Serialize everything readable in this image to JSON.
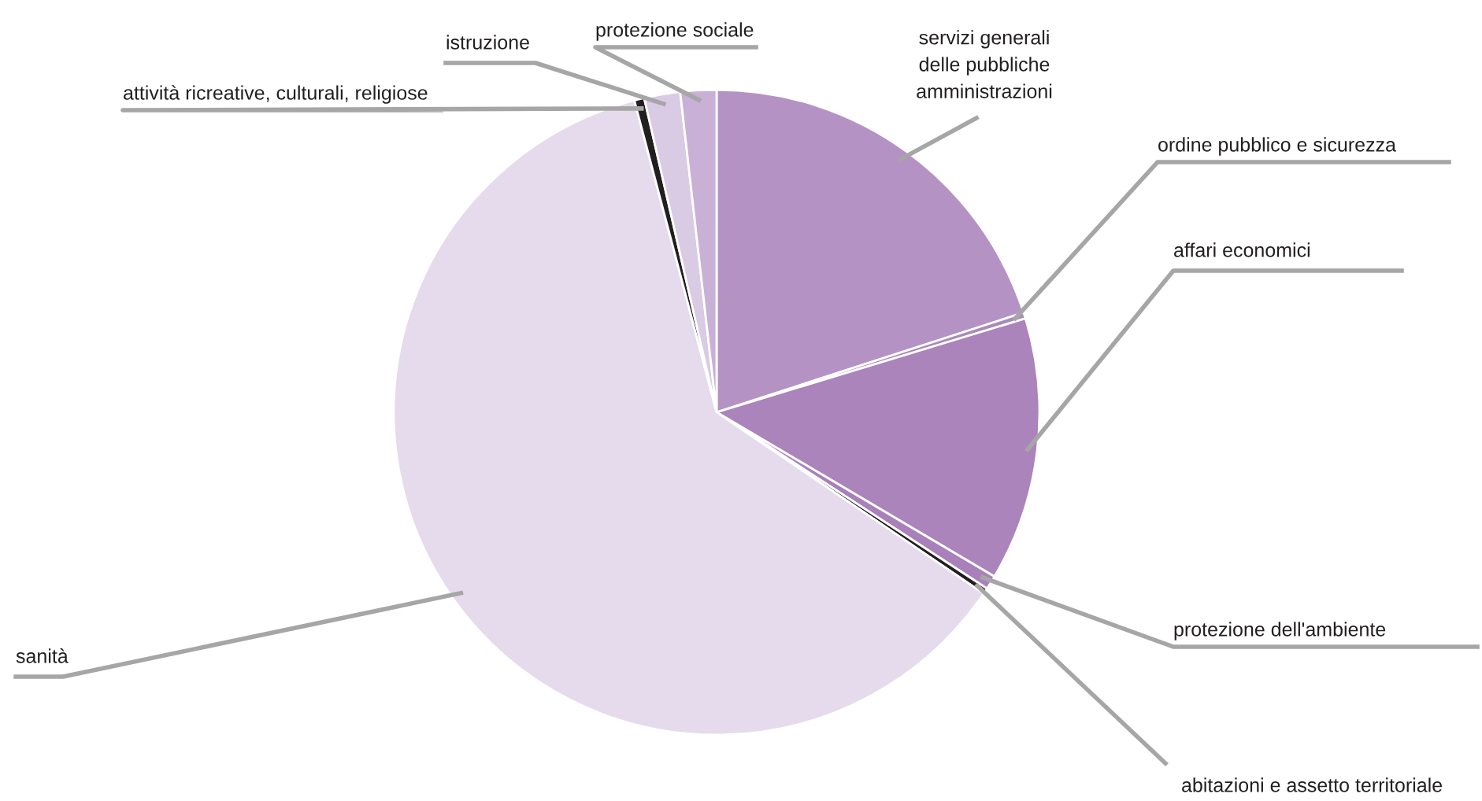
{
  "chart_data": {
    "type": "pie",
    "categories": [
      "servizi generali\ndelle pubbliche\namministrazioni",
      "ordine pubblico e sicurezza",
      "affari economici",
      "protezione dell'ambiente",
      "abitazioni e assetto territoriale",
      "sanità",
      "attività ricreative, culturali, religiose",
      "istruzione",
      "protezione sociale"
    ],
    "values": [
      20,
      0.3,
      13.2,
      0.7,
      0.3,
      61.4,
      0.5,
      1.8,
      1.8
    ],
    "colors": [
      "#b592c4",
      "#a98ab8",
      "#aa84bb",
      "#a880ba",
      "#231f20",
      "#e5dbec",
      "#231f20",
      "#d9cbe3",
      "#c8b0d6"
    ]
  }
}
